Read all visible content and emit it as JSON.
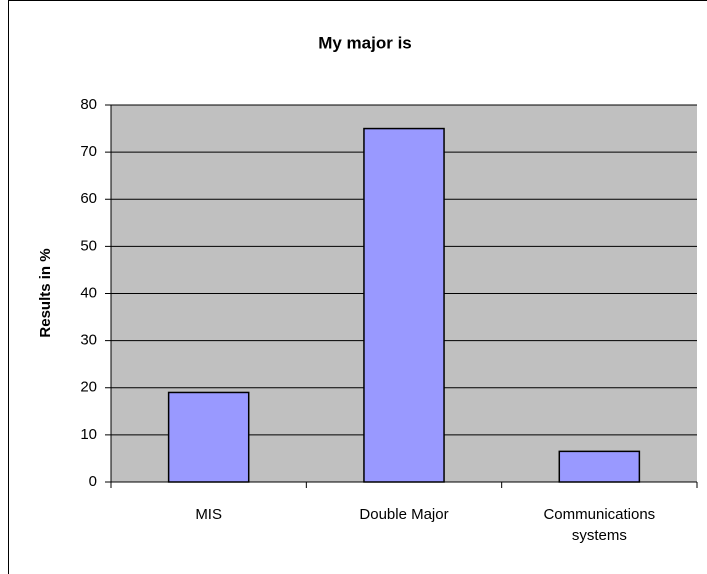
{
  "chart_data": {
    "type": "bar",
    "title": "My major is",
    "y_label": "Results in %",
    "categories": [
      "MIS",
      "Double Major",
      "Communications systems"
    ],
    "values": [
      19,
      75,
      6.5
    ],
    "color": "#9999ff",
    "ylim": [
      0,
      80
    ],
    "yticks": [
      0,
      10,
      20,
      30,
      40,
      50,
      60,
      70,
      80
    ],
    "grid": true
  }
}
